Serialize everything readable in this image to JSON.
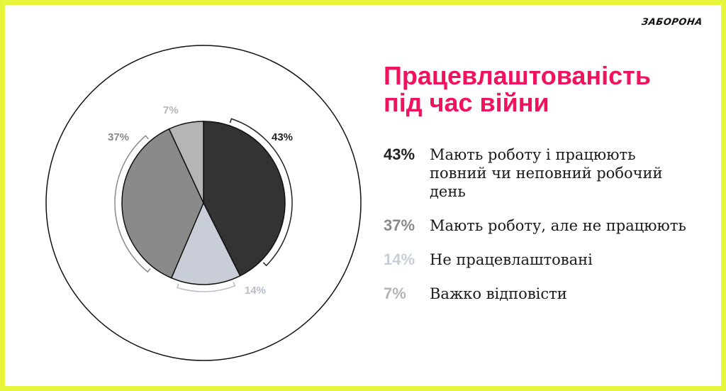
{
  "brand": {
    "logo_text": "ЗАБОРОНА",
    "frame_color": "#e6f53a",
    "title_color": "#f0125f"
  },
  "title_lines": [
    "Працевлаштованість",
    "під час війни"
  ],
  "chart_data": {
    "type": "pie",
    "title": "Працевлаштованість під час війни",
    "categories": [
      "Мають роботу і працюють повний чи неповний робочий день",
      "Не працевлаштовані",
      "Мають роботу, але не працюють",
      "Важко відповісти"
    ],
    "values": [
      43,
      14,
      37,
      7
    ],
    "labels": [
      "43%",
      "14%",
      "37%",
      "7%"
    ],
    "colors": [
      "#333333",
      "#c9cdd8",
      "#8a8a8a",
      "#b5b5b5"
    ],
    "label_colors": [
      "#222222",
      "#b8bcc8",
      "#8a8a8a",
      "#b5b5b5"
    ]
  },
  "legend": [
    {
      "pct": "43%",
      "text": "Мають роботу і працюють повний чи неповний робочий день",
      "color": "#222222"
    },
    {
      "pct": "37%",
      "text": "Мають роботу, але не працюють",
      "color": "#8a8a8a"
    },
    {
      "pct": "14%",
      "text": "Не працевлаштовані",
      "color": "#c9cdd8"
    },
    {
      "pct": "7%",
      "text": "Важко відповісти",
      "color": "#b5b5b5"
    }
  ]
}
